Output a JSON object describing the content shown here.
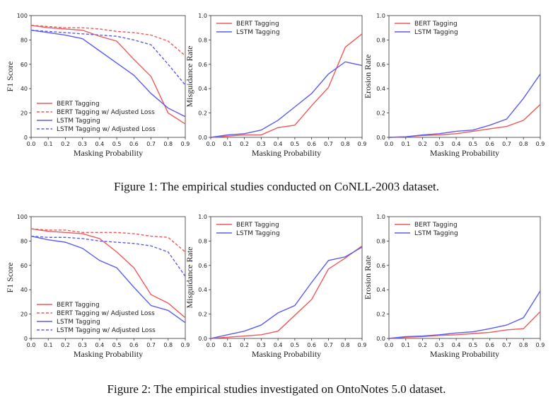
{
  "colors": {
    "bert": "#f0585a",
    "lstm": "#5b5cf0"
  },
  "captions": [
    "Figure 1: The empirical studies conducted on CoNLL-2003 dataset.",
    "Figure 2: The empirical studies investigated on OntoNotes 5.0 dataset."
  ],
  "chart_data": [
    {
      "type": "line",
      "xlabel": "Masking Probability",
      "ylabel": "F1 Score",
      "x": [
        0.0,
        0.1,
        0.2,
        0.3,
        0.4,
        0.5,
        0.6,
        0.7,
        0.8,
        0.9
      ],
      "xlim": [
        0,
        0.9
      ],
      "ylim": [
        0,
        100
      ],
      "xticks": [
        "0.0",
        "0.1",
        "0.2",
        "0.3",
        "0.4",
        "0.5",
        "0.6",
        "0.7",
        "0.8",
        "0.9"
      ],
      "yticks": [
        "0",
        "20",
        "40",
        "60",
        "80",
        "100"
      ],
      "legend": "bottom-left",
      "series": [
        {
          "name": "BERT Tagging",
          "color": "bert",
          "dash": false,
          "values": [
            92,
            90,
            89,
            88,
            83,
            79,
            64,
            50,
            20,
            11
          ]
        },
        {
          "name": "BERT Tagging w/ Adjusted Loss",
          "color": "bert",
          "dash": true,
          "values": [
            92,
            91,
            90,
            90,
            89,
            87,
            86,
            84,
            79,
            67
          ]
        },
        {
          "name": "LSTM Tagging",
          "color": "lstm",
          "dash": false,
          "values": [
            88,
            86,
            84,
            81,
            71,
            61,
            51,
            36,
            24,
            17
          ]
        },
        {
          "name": "LSTM Tagging w/ Adjusted Loss",
          "color": "lstm",
          "dash": true,
          "values": [
            88,
            87,
            86,
            85,
            84,
            83,
            80,
            76,
            60,
            43
          ]
        }
      ]
    },
    {
      "type": "line",
      "xlabel": "Masking Probability",
      "ylabel": "Misguidance Rate",
      "x": [
        0.0,
        0.1,
        0.2,
        0.3,
        0.4,
        0.5,
        0.6,
        0.7,
        0.8,
        0.9
      ],
      "xlim": [
        0,
        0.9
      ],
      "ylim": [
        0,
        1.0
      ],
      "xticks": [
        "0.0",
        "0.1",
        "0.2",
        "0.3",
        "0.4",
        "0.5",
        "0.6",
        "0.7",
        "0.8",
        "0.9"
      ],
      "yticks": [
        "0.0",
        "0.2",
        "0.4",
        "0.6",
        "0.8",
        "1.0"
      ],
      "legend": "top-left",
      "series": [
        {
          "name": "BERT Tagging",
          "color": "bert",
          "dash": false,
          "values": [
            0,
            0.01,
            0.02,
            0.02,
            0.08,
            0.1,
            0.26,
            0.41,
            0.74,
            0.85
          ]
        },
        {
          "name": "LSTM Tagging",
          "color": "lstm",
          "dash": false,
          "values": [
            0,
            0.02,
            0.03,
            0.06,
            0.14,
            0.25,
            0.36,
            0.52,
            0.62,
            0.59
          ]
        }
      ]
    },
    {
      "type": "line",
      "xlabel": "Masking Probability",
      "ylabel": "Erosion Rate",
      "x": [
        0.0,
        0.1,
        0.2,
        0.3,
        0.4,
        0.5,
        0.6,
        0.7,
        0.8,
        0.9
      ],
      "xlim": [
        0,
        0.9
      ],
      "ylim": [
        0,
        1.0
      ],
      "xticks": [
        "0.0",
        "0.1",
        "0.2",
        "0.3",
        "0.4",
        "0.5",
        "0.6",
        "0.7",
        "0.8",
        "0.9"
      ],
      "yticks": [
        "0.0",
        "0.2",
        "0.4",
        "0.6",
        "0.8",
        "1.0"
      ],
      "legend": "top-left",
      "series": [
        {
          "name": "BERT Tagging",
          "color": "bert",
          "dash": false,
          "values": [
            0,
            0.005,
            0.015,
            0.02,
            0.03,
            0.05,
            0.07,
            0.09,
            0.14,
            0.27
          ]
        },
        {
          "name": "LSTM Tagging",
          "color": "lstm",
          "dash": false,
          "values": [
            0,
            0.005,
            0.02,
            0.03,
            0.05,
            0.06,
            0.1,
            0.15,
            0.32,
            0.52
          ]
        }
      ]
    },
    {
      "type": "line",
      "xlabel": "Masking Probability",
      "ylabel": "F1 Score",
      "x": [
        0.0,
        0.1,
        0.2,
        0.3,
        0.4,
        0.5,
        0.6,
        0.7,
        0.8,
        0.9
      ],
      "xlim": [
        0,
        0.9
      ],
      "ylim": [
        0,
        100
      ],
      "xticks": [
        "0.0",
        "0.1",
        "0.2",
        "0.3",
        "0.4",
        "0.5",
        "0.6",
        "0.7",
        "0.8",
        "0.9"
      ],
      "yticks": [
        "0",
        "20",
        "40",
        "60",
        "80",
        "100"
      ],
      "legend": "bottom-left",
      "series": [
        {
          "name": "BERT Tagging",
          "color": "bert",
          "dash": false,
          "values": [
            90,
            88,
            87,
            86,
            82,
            71,
            58,
            36,
            29,
            17
          ]
        },
        {
          "name": "BERT Tagging w/ Adjusted Loss",
          "color": "bert",
          "dash": true,
          "values": [
            90,
            89,
            89,
            87,
            87,
            87,
            86,
            84,
            83,
            71
          ]
        },
        {
          "name": "LSTM Tagging",
          "color": "lstm",
          "dash": false,
          "values": [
            84,
            81,
            79,
            74,
            64,
            58,
            42,
            27,
            23,
            13
          ]
        },
        {
          "name": "LSTM Tagging w/ Adjusted Loss",
          "color": "lstm",
          "dash": true,
          "values": [
            84,
            83,
            83,
            82,
            80,
            79,
            78,
            76,
            71,
            51
          ]
        }
      ]
    },
    {
      "type": "line",
      "xlabel": "Masking Probability",
      "ylabel": "Misguidance Rate",
      "x": [
        0.0,
        0.1,
        0.2,
        0.3,
        0.4,
        0.5,
        0.6,
        0.7,
        0.8,
        0.9
      ],
      "xlim": [
        0,
        0.9
      ],
      "ylim": [
        0,
        1.0
      ],
      "xticks": [
        "0.0",
        "0.1",
        "0.2",
        "0.3",
        "0.4",
        "0.5",
        "0.6",
        "0.7",
        "0.8",
        "0.9"
      ],
      "yticks": [
        "0.0",
        "0.2",
        "0.4",
        "0.6",
        "0.8",
        "1.0"
      ],
      "legend": "top-left",
      "series": [
        {
          "name": "BERT Tagging",
          "color": "bert",
          "dash": false,
          "values": [
            0,
            0.01,
            0.02,
            0.03,
            0.06,
            0.19,
            0.32,
            0.57,
            0.66,
            0.76
          ]
        },
        {
          "name": "LSTM Tagging",
          "color": "lstm",
          "dash": false,
          "values": [
            0,
            0.03,
            0.06,
            0.11,
            0.21,
            0.27,
            0.46,
            0.64,
            0.67,
            0.75
          ]
        }
      ]
    },
    {
      "type": "line",
      "xlabel": "Masking Probability",
      "ylabel": "Erosion Rate",
      "x": [
        0.0,
        0.1,
        0.2,
        0.3,
        0.4,
        0.5,
        0.6,
        0.7,
        0.8,
        0.9
      ],
      "xlim": [
        0,
        0.9
      ],
      "ylim": [
        0,
        1.0
      ],
      "xticks": [
        "0.0",
        "0.1",
        "0.2",
        "0.3",
        "0.4",
        "0.5",
        "0.6",
        "0.7",
        "0.8",
        "0.9"
      ],
      "yticks": [
        "0.0",
        "0.2",
        "0.4",
        "0.6",
        "0.8",
        "1.0"
      ],
      "legend": "top-left",
      "series": [
        {
          "name": "BERT Tagging",
          "color": "bert",
          "dash": false,
          "values": [
            0,
            0.01,
            0.015,
            0.025,
            0.03,
            0.04,
            0.05,
            0.07,
            0.08,
            0.22
          ]
        },
        {
          "name": "LSTM Tagging",
          "color": "lstm",
          "dash": false,
          "values": [
            0,
            0.015,
            0.02,
            0.03,
            0.045,
            0.055,
            0.08,
            0.11,
            0.17,
            0.39
          ]
        }
      ]
    }
  ]
}
